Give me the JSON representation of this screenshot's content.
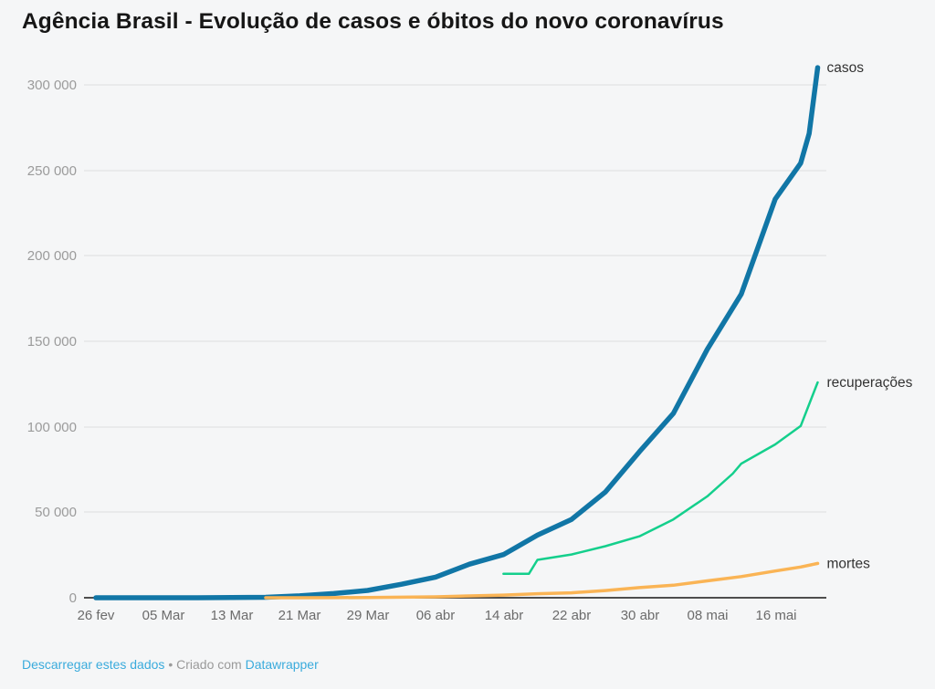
{
  "page": {
    "title": "Agência Brasil - Evolução de casos e óbitos do novo coronavírus",
    "background_color": "#f5f6f7"
  },
  "footer": {
    "download_link_label": "Descarregar estes dados",
    "separator": "•",
    "credit_prefix": "Criado com",
    "credit_link_label": "Datawrapper",
    "link_color": "#3aabdc",
    "text_color": "#9a9a9a"
  },
  "chart_data": {
    "type": "line",
    "title": "Agência Brasil - Evolução de casos e óbitos do novo coronavírus",
    "xlabel": "",
    "ylabel": "",
    "x_start_date": "2020-02-26",
    "x_end_date": "2020-05-21",
    "ylim": [
      0,
      310000
    ],
    "grid": true,
    "legend_position": "line-end-labels",
    "yticks": [
      0,
      50000,
      100000,
      150000,
      200000,
      250000,
      300000
    ],
    "ytick_labels": [
      "0",
      "50 000",
      "100 000",
      "150 000",
      "200 000",
      "250 000",
      "300 000"
    ],
    "xtick_dates": [
      "2020-02-26",
      "2020-03-05",
      "2020-03-13",
      "2020-03-21",
      "2020-03-29",
      "2020-04-06",
      "2020-04-14",
      "2020-04-22",
      "2020-04-30",
      "2020-05-08",
      "2020-05-16"
    ],
    "xtick_labels": [
      "26 fev",
      "05 Mar",
      "13 Mar",
      "21 Mar",
      "29 Mar",
      "06 abr",
      "14 abr",
      "22 abr",
      "30 abr",
      "08 mai",
      "16 mai"
    ],
    "series": [
      {
        "name": "casos",
        "color": "#1176a6",
        "stroke_width": 5.5,
        "points": [
          [
            "2020-02-26",
            1
          ],
          [
            "2020-03-01",
            2
          ],
          [
            "2020-03-05",
            8
          ],
          [
            "2020-03-09",
            25
          ],
          [
            "2020-03-13",
            98
          ],
          [
            "2020-03-17",
            291
          ],
          [
            "2020-03-21",
            1128
          ],
          [
            "2020-03-25",
            2433
          ],
          [
            "2020-03-29",
            4256
          ],
          [
            "2020-04-02",
            7910
          ],
          [
            "2020-04-06",
            12056
          ],
          [
            "2020-04-10",
            19638
          ],
          [
            "2020-04-14",
            25262
          ],
          [
            "2020-04-18",
            36599
          ],
          [
            "2020-04-22",
            45757
          ],
          [
            "2020-04-26",
            61888
          ],
          [
            "2020-04-30",
            85380
          ],
          [
            "2020-05-04",
            107780
          ],
          [
            "2020-05-08",
            145328
          ],
          [
            "2020-05-12",
            177589
          ],
          [
            "2020-05-16",
            233142
          ],
          [
            "2020-05-19",
            254220
          ],
          [
            "2020-05-20",
            271628
          ],
          [
            "2020-05-21",
            310087
          ]
        ]
      },
      {
        "name": "recuperações",
        "color": "#14cf8c",
        "stroke_width": 2.5,
        "points": [
          [
            "2020-04-14",
            14026
          ],
          [
            "2020-04-17",
            14026
          ],
          [
            "2020-04-18",
            22130
          ],
          [
            "2020-04-22",
            25318
          ],
          [
            "2020-04-26",
            30152
          ],
          [
            "2020-04-30",
            35935
          ],
          [
            "2020-05-04",
            45815
          ],
          [
            "2020-05-08",
            59297
          ],
          [
            "2020-05-11",
            72597
          ],
          [
            "2020-05-12",
            78424
          ],
          [
            "2020-05-16",
            89672
          ],
          [
            "2020-05-19",
            100459
          ],
          [
            "2020-05-21",
            125960
          ]
        ]
      },
      {
        "name": "mortes",
        "color": "#fab455",
        "stroke_width": 3.5,
        "points": [
          [
            "2020-03-17",
            1
          ],
          [
            "2020-03-21",
            18
          ],
          [
            "2020-03-25",
            59
          ],
          [
            "2020-03-29",
            136
          ],
          [
            "2020-04-02",
            305
          ],
          [
            "2020-04-06",
            553
          ],
          [
            "2020-04-10",
            1057
          ],
          [
            "2020-04-14",
            1532
          ],
          [
            "2020-04-18",
            2347
          ],
          [
            "2020-04-22",
            2906
          ],
          [
            "2020-04-26",
            4205
          ],
          [
            "2020-04-30",
            5901
          ],
          [
            "2020-05-04",
            7321
          ],
          [
            "2020-05-08",
            9897
          ],
          [
            "2020-05-12",
            12400
          ],
          [
            "2020-05-16",
            15633
          ],
          [
            "2020-05-19",
            17971
          ],
          [
            "2020-05-21",
            20047
          ]
        ]
      }
    ]
  }
}
